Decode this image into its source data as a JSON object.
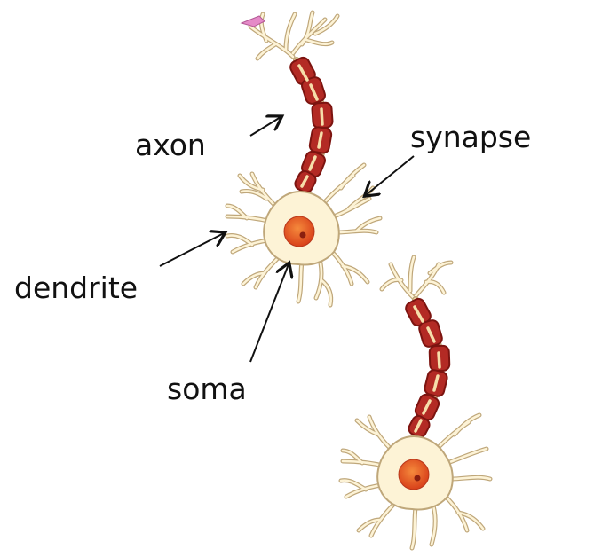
{
  "labels": {
    "axon": "axon",
    "synapse": "synapse",
    "dendrite": "dendrite",
    "soma": "soma"
  },
  "colors": {
    "cell_body": "#fdf3d6",
    "cell_outline": "#bfa77a",
    "myelin_fill": "#b32a24",
    "myelin_outline": "#7c1410",
    "axon_core": "#f6deaa",
    "nucleus": "#e8531f",
    "nucleolus": "#8a1f0f",
    "synapse_terminal": "#e58ac8",
    "arrow": "#111111",
    "label_text": "#111111"
  }
}
